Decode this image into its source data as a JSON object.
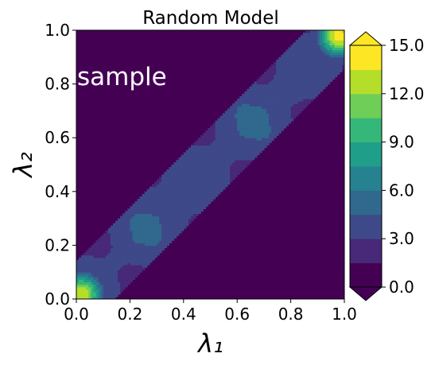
{
  "chart_data": {
    "type": "heatmap",
    "subtype": "filled-contour",
    "title": "Random Model",
    "xlabel": "λ₁",
    "ylabel": "λ₂",
    "xlim": [
      0.0,
      1.0
    ],
    "ylim": [
      0.0,
      1.0
    ],
    "x_ticks": [
      0.0,
      0.2,
      0.4,
      0.6,
      0.8,
      1.0
    ],
    "y_ticks": [
      0.0,
      0.2,
      0.4,
      0.6,
      0.8,
      1.0
    ],
    "x_tick_labels": [
      "0.0",
      "0.2",
      "0.4",
      "0.6",
      "0.8",
      "1.0"
    ],
    "y_tick_labels": [
      "0.0",
      "0.2",
      "0.4",
      "0.6",
      "0.8",
      "1.0"
    ],
    "annotation": "sample",
    "grid": false,
    "colorbar": {
      "range": [
        0.0,
        15.0
      ],
      "levels": [
        0,
        1.5,
        3,
        4.5,
        6,
        7.5,
        9,
        10.5,
        12,
        13.5,
        15
      ],
      "tick_values": [
        0.0,
        3.0,
        6.0,
        9.0,
        12.0,
        15.0
      ],
      "tick_labels": [
        "0.0",
        "3.0",
        "6.0",
        "9.0",
        "12.0",
        "15.0"
      ],
      "extend": "both",
      "colormap": "viridis",
      "colors": [
        "#440154",
        "#482878",
        "#3e4989",
        "#31688e",
        "#26828e",
        "#1f9e89",
        "#35b779",
        "#6ece58",
        "#b5de2b",
        "#fde725"
      ],
      "under_color": "#440154",
      "over_color": "#fde725"
    },
    "field": {
      "description_free": true,
      "band_center": "y = x",
      "band_half_width": 0.1,
      "background_value": 0.5,
      "hot_spots": [
        {
          "x": 0.02,
          "y": 0.02,
          "value": 13.5
        },
        {
          "x": 0.98,
          "y": 0.98,
          "value": 14.5
        },
        {
          "x": 0.82,
          "y": 0.76,
          "value": 3.5
        },
        {
          "x": 0.36,
          "y": 0.38,
          "value": 4.0
        }
      ]
    }
  }
}
